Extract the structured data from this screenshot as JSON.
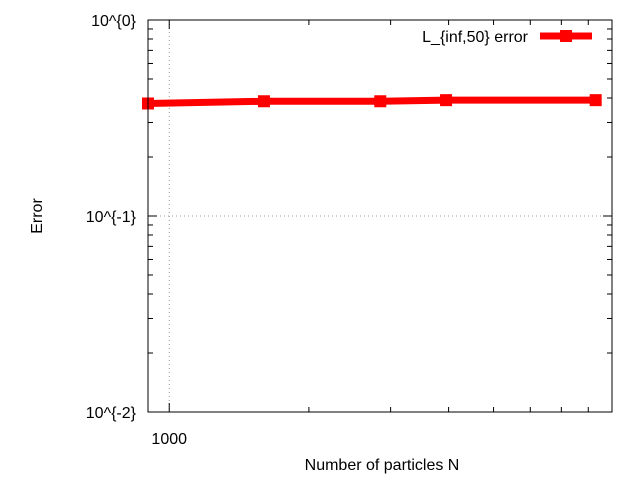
{
  "chart_data": {
    "type": "line",
    "title": "",
    "xlabel": "Number of particles N",
    "ylabel": "Error",
    "x_scale": "log",
    "y_scale": "log",
    "xlim": [
      900,
      9000
    ],
    "ylim": [
      0.01,
      1
    ],
    "x_ticks": [
      {
        "value": 1000,
        "label": "1000"
      }
    ],
    "x_minor_ticks": [
      2000,
      3000,
      4000,
      5000,
      6000,
      7000,
      8000
    ],
    "y_ticks": [
      {
        "value": 1,
        "label": "10^{0}"
      },
      {
        "value": 0.1,
        "label": "10^{-1}"
      },
      {
        "value": 0.01,
        "label": "10^{-2}"
      }
    ],
    "grid": true,
    "legend_position": "top-right",
    "series": [
      {
        "name": "L_{inf,50} error",
        "color": "#ff0000",
        "marker": "square",
        "x": [
          900,
          1600,
          2850,
          3950,
          8300
        ],
        "y": [
          0.375,
          0.385,
          0.385,
          0.39,
          0.39
        ]
      }
    ]
  }
}
